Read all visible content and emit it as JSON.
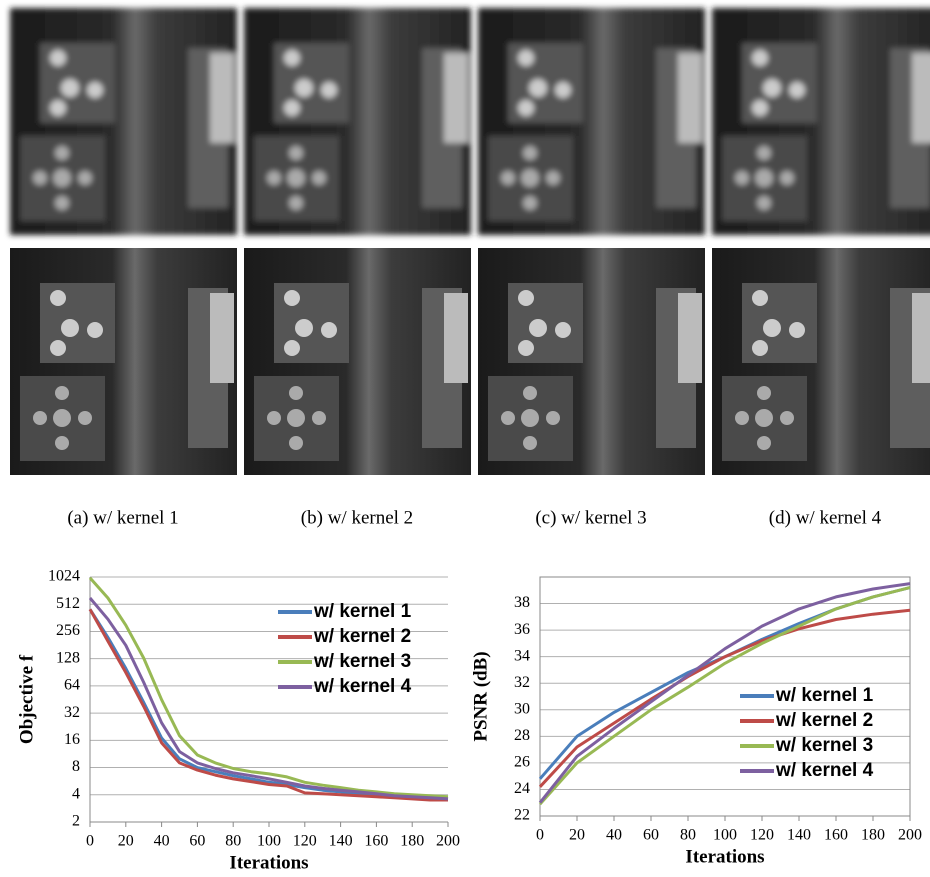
{
  "figure": {
    "captions": [
      "(a) w/ kernel 1",
      "(b) w/ kernel 2",
      "(c) w/ kernel 3",
      "(d) w/ kernel 4"
    ]
  },
  "chart_data": [
    {
      "type": "line",
      "x_label": "Iterations",
      "y_label": "Objective f",
      "yscale": "log",
      "grid": true,
      "legend": "upper right",
      "x": [
        0,
        10,
        20,
        30,
        40,
        50,
        60,
        70,
        80,
        90,
        100,
        110,
        120,
        130,
        140,
        150,
        160,
        170,
        180,
        190,
        200
      ],
      "xlim": [
        0,
        200
      ],
      "xticks": [
        0,
        20,
        40,
        60,
        80,
        100,
        120,
        140,
        160,
        180,
        200
      ],
      "ylim": [
        2,
        1024
      ],
      "yticks": [
        2,
        4,
        8,
        16,
        32,
        64,
        128,
        256,
        512,
        1024
      ],
      "series": [
        {
          "name": "w/ kernel 1",
          "color": "#4a7ebb",
          "values": [
            450,
            220,
            100,
            42,
            17,
            10,
            8,
            7.2,
            6.5,
            6,
            5.5,
            5.2,
            4.8,
            4.5,
            4.3,
            4.1,
            4,
            3.9,
            3.8,
            3.7,
            3.6
          ]
        },
        {
          "name": "w/ kernel 2",
          "color": "#be4b48",
          "values": [
            450,
            200,
            90,
            38,
            15,
            9,
            7.5,
            6.6,
            6,
            5.6,
            5.2,
            5,
            4.2,
            4.1,
            4,
            3.9,
            3.8,
            3.7,
            3.6,
            3.5,
            3.5
          ]
        },
        {
          "name": "w/ kernel 3",
          "color": "#98b954",
          "values": [
            1000,
            600,
            300,
            130,
            45,
            18,
            11,
            9,
            7.8,
            7.2,
            6.8,
            6.3,
            5.5,
            5.1,
            4.8,
            4.5,
            4.3,
            4.1,
            4,
            3.9,
            3.8
          ]
        },
        {
          "name": "w/ kernel 4",
          "color": "#7d60a0",
          "values": [
            600,
            350,
            180,
            70,
            25,
            12,
            9,
            7.8,
            7,
            6.5,
            6,
            5.5,
            5,
            4.7,
            4.5,
            4.3,
            4.1,
            3.9,
            3.8,
            3.7,
            3.6
          ]
        }
      ]
    },
    {
      "type": "line",
      "x_label": "Iterations",
      "y_label": "PSNR (dB)",
      "grid": true,
      "legend": "lower right",
      "x": [
        0,
        20,
        40,
        60,
        80,
        100,
        120,
        140,
        160,
        180,
        200
      ],
      "xlim": [
        0,
        200
      ],
      "xticks": [
        0,
        20,
        40,
        60,
        80,
        100,
        120,
        140,
        160,
        180,
        200
      ],
      "ylim": [
        22,
        40
      ],
      "yticks": [
        22,
        24,
        26,
        28,
        30,
        32,
        34,
        36,
        38
      ],
      "series": [
        {
          "name": "w/ kernel 1",
          "color": "#4a7ebb",
          "values": [
            24.8,
            28,
            29.8,
            31.3,
            32.8,
            34,
            35.3,
            36.5,
            37.6,
            38.5,
            39.2
          ]
        },
        {
          "name": "w/ kernel 2",
          "color": "#be4b48",
          "values": [
            24.2,
            27.2,
            29,
            30.8,
            32.5,
            34,
            35.2,
            36.1,
            36.8,
            37.2,
            37.5
          ]
        },
        {
          "name": "w/ kernel 3",
          "color": "#98b954",
          "values": [
            22.9,
            26,
            28,
            30,
            31.7,
            33.5,
            35,
            36.3,
            37.6,
            38.5,
            39.2
          ]
        },
        {
          "name": "w/ kernel 4",
          "color": "#7d60a0",
          "values": [
            23,
            26.5,
            28.6,
            30.6,
            32.6,
            34.6,
            36.3,
            37.6,
            38.5,
            39.1,
            39.5
          ]
        }
      ]
    }
  ]
}
